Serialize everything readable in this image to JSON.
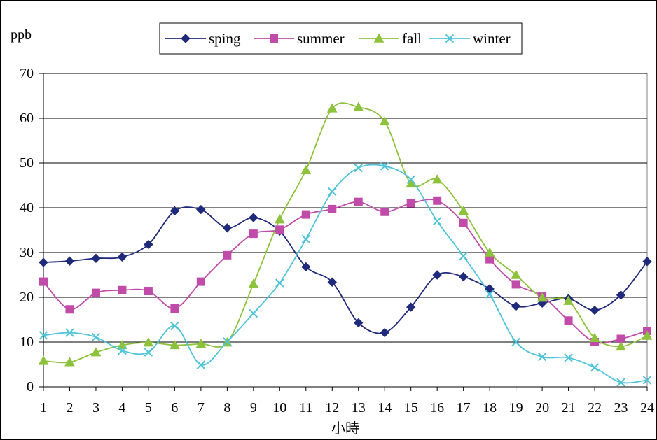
{
  "chart_data": {
    "type": "line",
    "ylabel": "ppb",
    "xlabel": "小時",
    "ylim": [
      0,
      70
    ],
    "yticks": [
      0,
      10,
      20,
      30,
      40,
      50,
      60,
      70
    ],
    "x": [
      1,
      2,
      3,
      4,
      5,
      6,
      7,
      8,
      9,
      10,
      11,
      12,
      13,
      14,
      15,
      16,
      17,
      18,
      19,
      20,
      21,
      22,
      23,
      24
    ],
    "grid": "horizontal",
    "legend": "top",
    "series": [
      {
        "name": "sping",
        "color": "#1f2a7a",
        "marker": "diamond",
        "values": [
          27.8,
          28.1,
          28.7,
          29.0,
          31.8,
          39.3,
          39.6,
          35.5,
          37.8,
          34.8,
          26.8,
          23.4,
          14.3,
          12.1,
          17.8,
          25.0,
          24.6,
          21.9,
          18.0,
          18.7,
          19.7,
          17.1,
          20.5,
          28.0
        ]
      },
      {
        "name": "summer",
        "color": "#c04ba8",
        "marker": "square",
        "values": [
          23.5,
          17.3,
          21.0,
          21.6,
          21.4,
          17.5,
          23.5,
          29.4,
          34.2,
          35.1,
          38.5,
          39.7,
          41.3,
          39.1,
          41.0,
          41.6,
          36.6,
          28.5,
          22.9,
          20.3,
          14.8,
          10.0,
          10.7,
          12.5
        ]
      },
      {
        "name": "fall",
        "color": "#8dc23c",
        "marker": "triangle",
        "values": [
          5.8,
          5.5,
          7.7,
          9.3,
          9.9,
          9.3,
          9.6,
          9.9,
          23.0,
          37.4,
          48.4,
          62.2,
          62.5,
          59.3,
          45.4,
          46.3,
          39.3,
          30.0,
          25.0,
          19.9,
          19.2,
          10.9,
          9.0,
          11.4
        ]
      },
      {
        "name": "winter",
        "color": "#4fc4d8",
        "marker": "x",
        "values": [
          11.5,
          12.1,
          11.1,
          8.1,
          7.7,
          13.6,
          4.9,
          10.1,
          16.4,
          23.2,
          33.0,
          43.6,
          48.9,
          49.3,
          46.3,
          37.0,
          29.2,
          20.7,
          10.0,
          6.7,
          6.5,
          4.3,
          1.0,
          1.5
        ]
      }
    ]
  }
}
